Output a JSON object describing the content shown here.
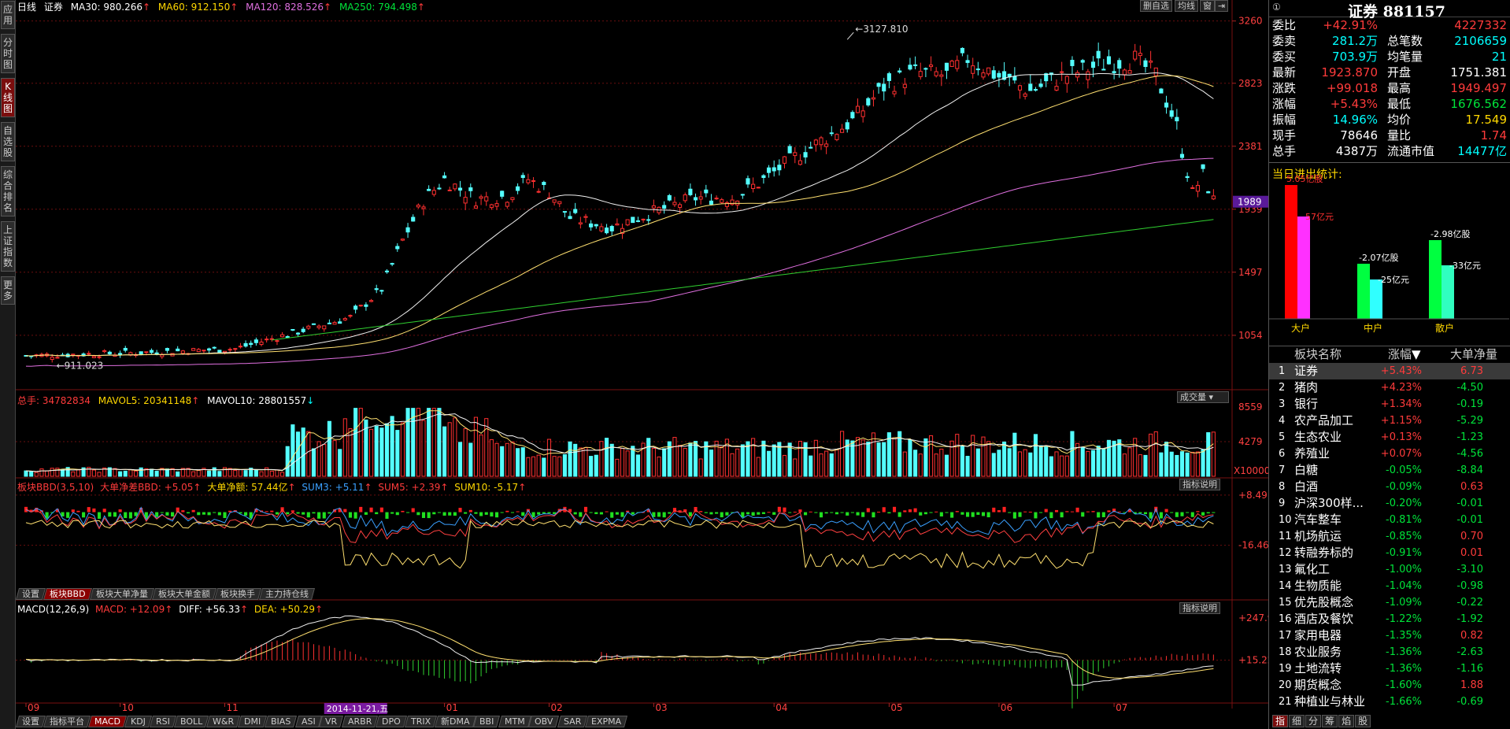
{
  "left_tabs": [
    {
      "label": "应用"
    },
    {
      "label": "分时图"
    },
    {
      "label": "K线图",
      "active": true
    },
    {
      "label": "自选股"
    },
    {
      "label": "综合排名"
    },
    {
      "label": "上证指数"
    },
    {
      "label": "更多"
    }
  ],
  "toolbar": {
    "period": "日线",
    "name": "证券",
    "ma30": "MA30: 980.266",
    "ma60": "MA60: 912.150",
    "ma120": "MA120: 828.526",
    "ma250": "MA250: 794.498",
    "btn_self": "删自选",
    "btn_avg": "均线",
    "btn_win": "窗"
  },
  "price_axis": {
    "labels": [
      "3260",
      "2823",
      "2381",
      "1989",
      "1939",
      "1497",
      "1054"
    ],
    "current": "1989"
  },
  "annotations": {
    "high": "3127.810",
    "low": "911.023"
  },
  "volume": {
    "total": "总手: 34782834",
    "mavol5": "MAVOL5: 20341148",
    "mavol10": "MAVOL10: 28801557",
    "select": "成交量",
    "axis": [
      "8559",
      "4279",
      "X10000"
    ]
  },
  "bbd": {
    "title": "板块BBD(3,5,10)",
    "item1": "大单净差BBD: +5.05",
    "item2": "大单净额: 57.44亿",
    "sum3": "SUM3: +5.11",
    "sum5": "SUM5: +2.39",
    "sum10": "SUM10: -5.17",
    "help": "指标说明",
    "axis": [
      "+8.49",
      "-16.46"
    ],
    "tabs": [
      {
        "label": "设置"
      },
      {
        "label": "板块BBD",
        "on": true
      },
      {
        "label": "板块大单净量"
      },
      {
        "label": "板块大单金额"
      },
      {
        "label": "板块换手"
      },
      {
        "label": "主力持仓线"
      }
    ]
  },
  "macd": {
    "title": "MACD(12,26,9)",
    "macd": "MACD: +12.09",
    "diff": "DIFF: +56.33",
    "dea": "DEA: +50.29",
    "help": "指标说明",
    "axis": [
      "+247.9",
      "+15.22"
    ]
  },
  "dates": {
    "labels": [
      "09",
      "10",
      "11",
      "01",
      "02",
      "03",
      "04",
      "05",
      "06",
      "07"
    ],
    "highlight": "2014-11-21,五"
  },
  "bottom_tabs": [
    {
      "label": "设置"
    },
    {
      "label": "指标平台"
    },
    {
      "label": "MACD",
      "on": true
    },
    {
      "label": "KDJ"
    },
    {
      "label": "RSI"
    },
    {
      "label": "BOLL"
    },
    {
      "label": "W&R"
    },
    {
      "label": "DMI"
    },
    {
      "label": "BIAS"
    },
    {
      "label": "ASI"
    },
    {
      "label": "VR"
    },
    {
      "label": "ARBR"
    },
    {
      "label": "DPO"
    },
    {
      "label": "TRIX"
    },
    {
      "label": "新DMA"
    },
    {
      "label": "BBI"
    },
    {
      "label": "MTM"
    },
    {
      "label": "OBV"
    },
    {
      "label": "SAR"
    },
    {
      "label": "EXPMA"
    }
  ],
  "quote": {
    "badge": "①",
    "title": "证券 881157",
    "rows": [
      {
        "l1": "委比",
        "v1": "+42.91%",
        "l2": "",
        "v2": "4227332"
      },
      {
        "l1": "委卖",
        "v1": "281.2万",
        "l2": "总笔数",
        "v2": "2106659"
      },
      {
        "l1": "委买",
        "v1": "703.9万",
        "l2": "均笔量",
        "v2": "21"
      },
      {
        "l1": "最新",
        "v1": "1923.870",
        "l2": "开盘",
        "v2": "1751.381"
      },
      {
        "l1": "涨跌",
        "v1": "+99.018",
        "l2": "最高",
        "v2": "1949.497"
      },
      {
        "l1": "涨幅",
        "v1": "+5.43%",
        "l2": "最低",
        "v2": "1676.562"
      },
      {
        "l1": "振幅",
        "v1": "14.96%",
        "l2": "均价",
        "v2": "17.549"
      },
      {
        "l1": "现手",
        "v1": "78646",
        "l2": "量比",
        "v2": "1.74"
      },
      {
        "l1": "总手",
        "v1": "4387万",
        "l2": "流通市值",
        "v2": "14477亿"
      }
    ]
  },
  "flow": {
    "title": "当日进出统计:",
    "groups": [
      {
        "name": "大户",
        "in_label": "5.05亿股",
        "out_label": "57亿元",
        "in": 5.05
      },
      {
        "name": "中户",
        "in_label": "-2.07亿股",
        "out_label": "-25亿元",
        "in": -2.07
      },
      {
        "name": "散户",
        "in_label": "-2.98亿股",
        "out_label": "-33亿元",
        "in": -2.98
      }
    ]
  },
  "board": {
    "headers": [
      "板块名称",
      "涨幅",
      "大单净量"
    ],
    "rows": [
      {
        "n": "1",
        "name": "证券",
        "chg": "+5.43%",
        "net": "6.73"
      },
      {
        "n": "2",
        "name": "猪肉",
        "chg": "+4.23%",
        "net": "-4.50"
      },
      {
        "n": "3",
        "name": "银行",
        "chg": "+1.34%",
        "net": "-0.19"
      },
      {
        "n": "4",
        "name": "农产品加工",
        "chg": "+1.15%",
        "net": "-5.29"
      },
      {
        "n": "5",
        "name": "生态农业",
        "chg": "+0.13%",
        "net": "-1.23"
      },
      {
        "n": "6",
        "name": "养殖业",
        "chg": "+0.07%",
        "net": "-4.56"
      },
      {
        "n": "7",
        "name": "白糖",
        "chg": "-0.05%",
        "net": "-8.84"
      },
      {
        "n": "8",
        "name": "白酒",
        "chg": "-0.09%",
        "net": "0.63"
      },
      {
        "n": "9",
        "name": "沪深300样...",
        "chg": "-0.20%",
        "net": "-0.01"
      },
      {
        "n": "10",
        "name": "汽车整车",
        "chg": "-0.81%",
        "net": "-0.01"
      },
      {
        "n": "11",
        "name": "机场航运",
        "chg": "-0.85%",
        "net": "0.70"
      },
      {
        "n": "12",
        "name": "转融券标的",
        "chg": "-0.91%",
        "net": "0.01"
      },
      {
        "n": "13",
        "name": "氟化工",
        "chg": "-1.00%",
        "net": "-3.10"
      },
      {
        "n": "14",
        "name": "生物质能",
        "chg": "-1.04%",
        "net": "-0.98"
      },
      {
        "n": "15",
        "name": "优先股概念",
        "chg": "-1.09%",
        "net": "-0.22"
      },
      {
        "n": "16",
        "name": "酒店及餐饮",
        "chg": "-1.22%",
        "net": "-1.92"
      },
      {
        "n": "17",
        "name": "家用电器",
        "chg": "-1.35%",
        "net": "0.82"
      },
      {
        "n": "18",
        "name": "农业服务",
        "chg": "-1.36%",
        "net": "-2.63"
      },
      {
        "n": "19",
        "name": "土地流转",
        "chg": "-1.36%",
        "net": "-1.16"
      },
      {
        "n": "20",
        "name": "期货概念",
        "chg": "-1.60%",
        "net": "1.88"
      },
      {
        "n": "21",
        "name": "种植业与林业",
        "chg": "-1.66%",
        "net": "-0.69"
      }
    ]
  },
  "right_tabs": [
    {
      "label": "指",
      "on": true
    },
    {
      "label": "细"
    },
    {
      "label": "分"
    },
    {
      "label": "筹"
    },
    {
      "label": "焰"
    },
    {
      "label": "股"
    }
  ]
}
